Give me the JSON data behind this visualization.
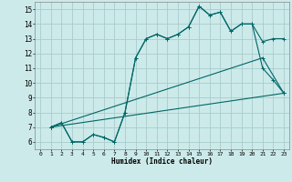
{
  "xlabel": "Humidex (Indice chaleur)",
  "background_color": "#cceaea",
  "grid_color": "#aacccc",
  "line_color": "#006666",
  "xlim": [
    -0.5,
    23.5
  ],
  "ylim": [
    5.5,
    15.5
  ],
  "xticks": [
    0,
    1,
    2,
    3,
    4,
    5,
    6,
    7,
    8,
    9,
    10,
    11,
    12,
    13,
    14,
    15,
    16,
    17,
    18,
    19,
    20,
    21,
    22,
    23
  ],
  "yticks": [
    6,
    7,
    8,
    9,
    10,
    11,
    12,
    13,
    14,
    15
  ],
  "line1_x": [
    1,
    2,
    3,
    4,
    5,
    6,
    7,
    8,
    9,
    10,
    11,
    12,
    13,
    14,
    15,
    16,
    17,
    18,
    19,
    20,
    21,
    22,
    23
  ],
  "line1_y": [
    7.0,
    7.3,
    6.0,
    6.0,
    6.5,
    6.3,
    6.0,
    8.0,
    11.7,
    13.0,
    13.3,
    13.0,
    13.3,
    13.8,
    15.2,
    14.6,
    14.8,
    13.5,
    14.0,
    14.0,
    12.8,
    13.0,
    13.0
  ],
  "line2_x": [
    1,
    2,
    3,
    4,
    5,
    6,
    7,
    8,
    9,
    10,
    11,
    12,
    13,
    14,
    15,
    16,
    17,
    18,
    19,
    20,
    21,
    22,
    23
  ],
  "line2_y": [
    7.0,
    7.3,
    6.0,
    6.0,
    6.5,
    6.3,
    6.0,
    8.0,
    11.7,
    13.0,
    13.3,
    13.0,
    13.3,
    13.8,
    15.2,
    14.6,
    14.8,
    13.5,
    14.0,
    14.0,
    11.0,
    10.2,
    9.3
  ],
  "line3_x": [
    1,
    21,
    23
  ],
  "line3_y": [
    7.0,
    11.7,
    9.3
  ],
  "line4_x": [
    1,
    23
  ],
  "line4_y": [
    7.0,
    9.3
  ],
  "marker": "+"
}
